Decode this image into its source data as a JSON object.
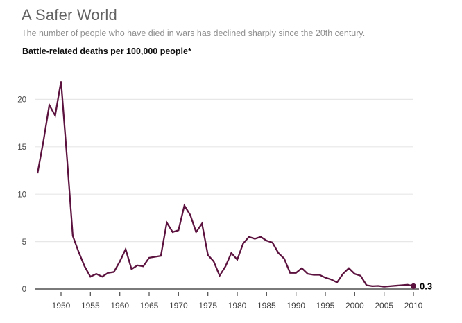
{
  "header": {
    "title": "A Safer World",
    "subtitle": "The number of people who have died in wars has declined sharply since the 20th century.",
    "chart_label": "Battle-related deaths per 100,000 people*"
  },
  "chart_data": {
    "type": "line",
    "title": "A Safer World",
    "subtitle": "The number of people who have died in wars has declined sharply since the 20th century.",
    "series_label": "Battle-related deaths per 100,000 people*",
    "xlabel": "",
    "ylabel": "",
    "xlim": [
      1946,
      2010
    ],
    "ylim": [
      0,
      22
    ],
    "grid": true,
    "legend": "none",
    "x_ticks": [
      1950,
      1955,
      1960,
      1965,
      1970,
      1975,
      1980,
      1985,
      1990,
      1995,
      2000,
      2005,
      2010
    ],
    "y_gridlines": [
      0,
      5,
      10,
      15,
      20
    ],
    "x": [
      1946,
      1947,
      1948,
      1949,
      1950,
      1951,
      1952,
      1953,
      1954,
      1955,
      1956,
      1957,
      1958,
      1959,
      1960,
      1961,
      1962,
      1963,
      1964,
      1965,
      1966,
      1967,
      1968,
      1969,
      1970,
      1971,
      1972,
      1973,
      1974,
      1975,
      1976,
      1977,
      1978,
      1979,
      1980,
      1981,
      1982,
      1983,
      1984,
      1985,
      1986,
      1987,
      1988,
      1989,
      1990,
      1991,
      1992,
      1993,
      1994,
      1995,
      1996,
      1997,
      1998,
      1999,
      2000,
      2001,
      2002,
      2003,
      2004,
      2005,
      2006,
      2007,
      2008,
      2009,
      2010
    ],
    "values": [
      12.2,
      15.6,
      19.4,
      18.3,
      21.9,
      13.9,
      5.6,
      3.9,
      2.4,
      1.3,
      1.6,
      1.3,
      1.7,
      1.8,
      2.9,
      4.2,
      2.1,
      2.5,
      2.4,
      3.3,
      3.4,
      3.5,
      7.0,
      6.0,
      6.2,
      8.8,
      7.8,
      6.0,
      6.9,
      3.6,
      2.9,
      1.4,
      2.4,
      3.8,
      3.1,
      4.8,
      5.5,
      5.3,
      5.5,
      5.1,
      4.9,
      3.8,
      3.2,
      1.7,
      1.7,
      2.2,
      1.6,
      1.5,
      1.5,
      1.2,
      1.0,
      0.7,
      1.6,
      2.2,
      1.6,
      1.4,
      0.4,
      0.3,
      0.33,
      0.25,
      0.3,
      0.35,
      0.4,
      0.45,
      0.3
    ],
    "end_label": "0.3",
    "colors": {
      "line": "#5c123e",
      "grid": "#e7e7e7",
      "axis": "#7a7a7a",
      "tick": "#4a4a4a",
      "y_label": "#4d4d4d",
      "x_label": "#3f3f3f",
      "end_label": "#000000"
    }
  }
}
